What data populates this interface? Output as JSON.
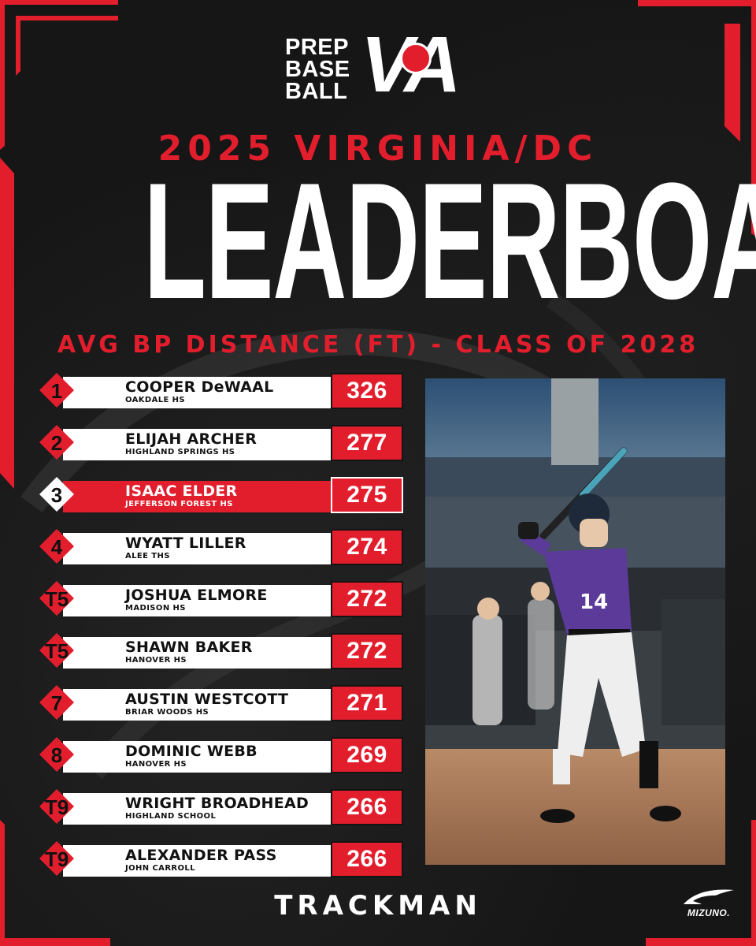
{
  "logo": {
    "words": [
      "PREP",
      "BASE",
      "BALL"
    ],
    "state": "VA"
  },
  "header": {
    "subtitle": "2025 VIRGINIA/DC",
    "title": "LEADERBOARD",
    "stat_title": "AVG BP DISTANCE (FT) - CLASS OF 2028"
  },
  "leaderboard": [
    {
      "rank": "1",
      "name": "COOPER DeWAAL",
      "school": "OAKDALE  HS",
      "value": "326",
      "highlight": false
    },
    {
      "rank": "2",
      "name": "ELIJAH ARCHER",
      "school": "HIGHLAND SPRINGS HS",
      "value": "277",
      "highlight": false
    },
    {
      "rank": "3",
      "name": "ISAAC ELDER",
      "school": "JEFFERSON FOREST HS",
      "value": "275",
      "highlight": true
    },
    {
      "rank": "4",
      "name": "WYATT LILLER",
      "school": "ALEE THS",
      "value": "274",
      "highlight": false
    },
    {
      "rank": "T5",
      "name": "JOSHUA ELMORE",
      "school": "MADISON  HS",
      "value": "272",
      "highlight": false
    },
    {
      "rank": "T5",
      "name": "SHAWN BAKER",
      "school": "HANOVER HS",
      "value": "272",
      "highlight": false
    },
    {
      "rank": "7",
      "name": "AUSTIN WESTCOTT",
      "school": "BRIAR WOODS HS",
      "value": "271",
      "highlight": false
    },
    {
      "rank": "8",
      "name": "DOMINIC WEBB",
      "school": "HANOVER HS",
      "value": "269",
      "highlight": false
    },
    {
      "rank": "T9",
      "name": "WRIGHT BROADHEAD",
      "school": "HIGHLAND SCHOOL",
      "value": "266",
      "highlight": false
    },
    {
      "rank": "T9",
      "name": "ALEXANDER PASS",
      "school": "JOHN CARROLL",
      "value": "266",
      "highlight": false
    }
  ],
  "photo": {
    "jersey_number": "14"
  },
  "footer": {
    "brand": "TRACKMAN",
    "sponsor": "MIZUNO."
  },
  "colors": {
    "accent_red": "#e21e2d",
    "background": "#141414",
    "text_light": "#ffffff"
  }
}
